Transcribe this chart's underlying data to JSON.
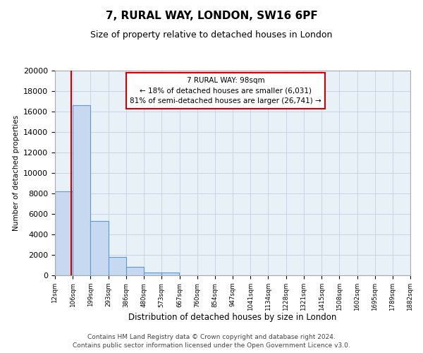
{
  "title": "7, RURAL WAY, LONDON, SW16 6PF",
  "subtitle": "Size of property relative to detached houses in London",
  "xlabel": "Distribution of detached houses by size in London",
  "ylabel": "Number of detached properties",
  "bar_edges": [
    12,
    106,
    199,
    293,
    386,
    480,
    573,
    667,
    760,
    854,
    947,
    1041,
    1134,
    1228,
    1321,
    1415,
    1508,
    1602,
    1695,
    1789,
    1882
  ],
  "bar_heights": [
    8200,
    16600,
    5300,
    1800,
    800,
    300,
    300,
    0,
    0,
    0,
    0,
    0,
    0,
    0,
    0,
    0,
    0,
    0,
    0,
    0
  ],
  "bar_color": "#c7d9f0",
  "bar_edgecolor": "#5b9bd5",
  "property_line_x": 98,
  "property_line_color": "#cc0000",
  "ylim": [
    0,
    20000
  ],
  "yticks": [
    0,
    2000,
    4000,
    6000,
    8000,
    10000,
    12000,
    14000,
    16000,
    18000,
    20000
  ],
  "annotation_title": "7 RURAL WAY: 98sqm",
  "annotation_line1": "← 18% of detached houses are smaller (6,031)",
  "annotation_line2": "81% of semi-detached houses are larger (26,741) →",
  "annotation_box_color": "#ffffff",
  "annotation_box_edgecolor": "#cc0000",
  "footer1": "Contains HM Land Registry data © Crown copyright and database right 2024.",
  "footer2": "Contains public sector information licensed under the Open Government Licence v3.0.",
  "bg_color": "#ffffff",
  "plot_bg_color": "#e8f0f8",
  "grid_color": "#c8d4e8",
  "tick_labels": [
    "12sqm",
    "106sqm",
    "199sqm",
    "293sqm",
    "386sqm",
    "480sqm",
    "573sqm",
    "667sqm",
    "760sqm",
    "854sqm",
    "947sqm",
    "1041sqm",
    "1134sqm",
    "1228sqm",
    "1321sqm",
    "1415sqm",
    "1508sqm",
    "1602sqm",
    "1695sqm",
    "1789sqm",
    "1882sqm"
  ]
}
